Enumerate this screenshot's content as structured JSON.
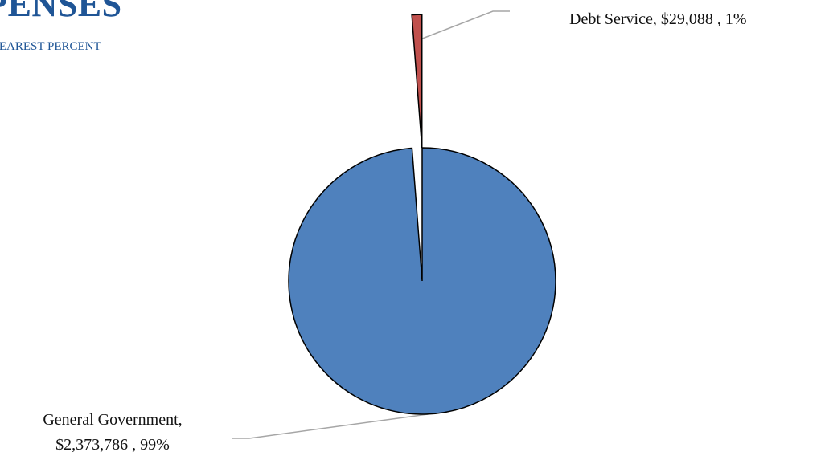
{
  "header": {
    "title": "XPENSES",
    "subtitle": "NEAREST PERCENT"
  },
  "chart_data": {
    "type": "pie",
    "title": "XPENSES",
    "subtitle": "NEAREST PERCENT",
    "slices": [
      {
        "category": "General Government",
        "value": 2373786,
        "value_label": "$2,373,786",
        "percent": 99,
        "percent_label": "99%",
        "color": "#4f81bd",
        "label_lines": [
          "General Government,",
          "$2,373,786 , 99%"
        ]
      },
      {
        "category": "Debt Service",
        "value": 29088,
        "value_label": "$29,088",
        "percent": 1,
        "percent_label": "1%",
        "color": "#c0504d",
        "exploded": true,
        "label_lines": [
          "Debt Service,  $29,088 , 1%"
        ]
      }
    ],
    "legend": "none (data labels with leader lines)"
  }
}
